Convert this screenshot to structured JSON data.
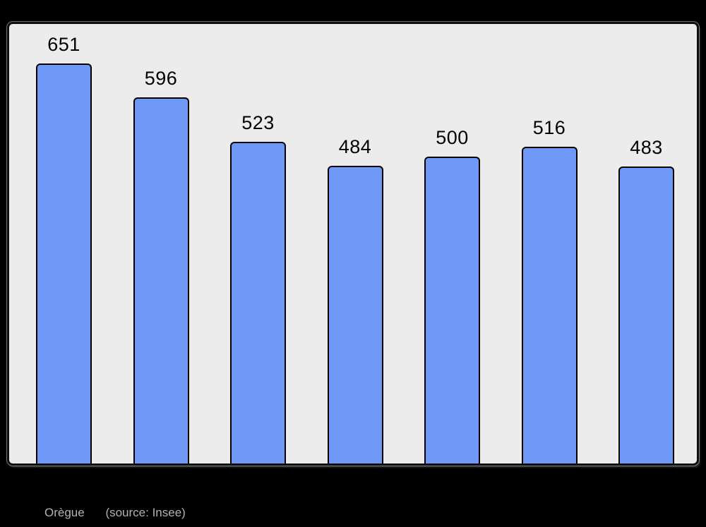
{
  "page": {
    "background_color": "#000000"
  },
  "chart": {
    "panel_background": "#ececec",
    "panel_border_color": "#0d0d0d",
    "bar_fill_color": "#7098f7",
    "bar_border_color": "#000000",
    "value_label_color": "#000000",
    "values": [
      651,
      596,
      523,
      484,
      500,
      516,
      483
    ],
    "value_labels": [
      "651",
      "596",
      "523",
      "484",
      "500",
      "516",
      "483"
    ]
  },
  "caption": {
    "name": "Orègue",
    "source": "(source: Insee)",
    "color": "#b2b2b2"
  },
  "chart_data": {
    "type": "bar",
    "values": [
      651,
      596,
      523,
      484,
      500,
      516,
      483
    ],
    "data_labels": [
      "651",
      "596",
      "523",
      "484",
      "500",
      "516",
      "483"
    ],
    "title": "",
    "xlabel": "",
    "ylabel": "",
    "ylim": [
      0,
      716
    ],
    "grid": false,
    "legend": false,
    "axis_tick_labels_visible": false,
    "caption": "Orègue (source: Insee)",
    "bar_color": "#7098f7",
    "notes": "Bars drawn from a zero baseline; data value labels shown above each bar; no visible axis ticks or category labels."
  }
}
